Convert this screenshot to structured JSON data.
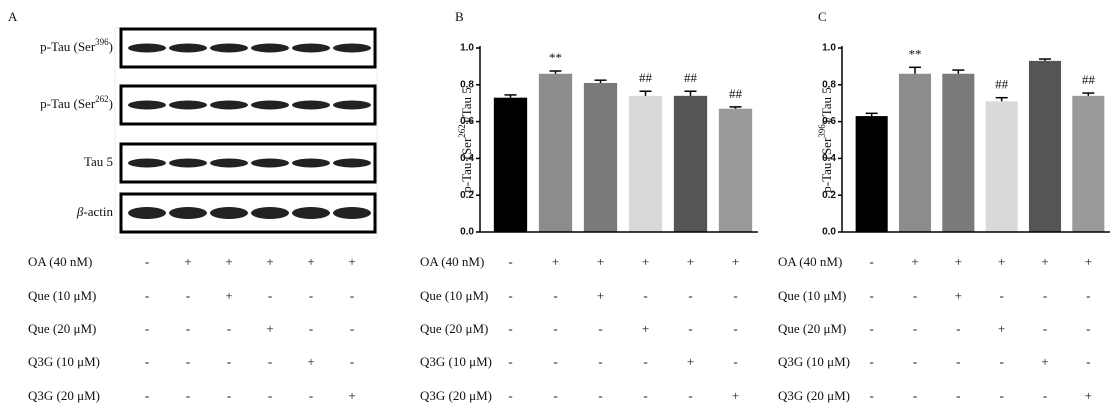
{
  "panels": {
    "a": "A"
  },
  "blot": {
    "rows": [
      {
        "prefix": "p-Tau (Ser",
        "sup": "396",
        "suffix": ")"
      },
      {
        "prefix": "p-Tau (Ser",
        "sup": "262",
        "suffix": ")"
      },
      {
        "prefix": "Tau 5"
      },
      {
        "prefix": "β",
        "suffix": "-actin"
      }
    ]
  },
  "treatments": [
    {
      "label": "OA (40 nM)",
      "signs": [
        "-",
        "+",
        "+",
        "+",
        "+",
        "+"
      ]
    },
    {
      "label": "Que (10 μM)",
      "signs": [
        "-",
        "-",
        "+",
        "-",
        "-",
        "-"
      ]
    },
    {
      "label": "Que (20 μM)",
      "signs": [
        "-",
        "-",
        "-",
        "+",
        "-",
        "-"
      ]
    },
    {
      "label": "Q3G (10 μM)",
      "signs": [
        "-",
        "-",
        "-",
        "-",
        "+",
        "-"
      ]
    },
    {
      "label": "Q3G (20 μM)",
      "signs": [
        "-",
        "-",
        "-",
        "-",
        "-",
        "+"
      ]
    }
  ],
  "chart_data": [
    {
      "type": "bar",
      "panel": "B",
      "ylabel": {
        "prefix": "p-Tau (Ser",
        "sup": "262",
        "suffix": ")/Tau 5"
      },
      "values": [
        0.73,
        0.86,
        0.81,
        0.74,
        0.74,
        0.67
      ],
      "errors": [
        0.015,
        0.015,
        0.015,
        0.025,
        0.025,
        0.01
      ],
      "annotations": [
        null,
        "**",
        null,
        "##",
        "##",
        "##"
      ],
      "colors": [
        "#000000",
        "#8c8c8c",
        "#7a7a7a",
        "#d9d9d9",
        "#555555",
        "#9a9a9a"
      ],
      "ylim": [
        0,
        1.0
      ],
      "yticks": [
        {
          "value": 0,
          "label": "0.0"
        },
        {
          "value": 0.2,
          "label": "0.2"
        },
        {
          "value": 0.4,
          "label": "0.4"
        },
        {
          "value": 0.6,
          "label": "0.6"
        },
        {
          "value": 0.8,
          "label": "0.8"
        },
        {
          "value": 1.0,
          "label": "1.0"
        }
      ]
    },
    {
      "type": "bar",
      "panel": "C",
      "ylabel": {
        "prefix": "p-Tau (Ser",
        "sup": "396",
        "suffix": ")/Tau 5"
      },
      "values": [
        0.63,
        0.86,
        0.86,
        0.71,
        0.93,
        0.74
      ],
      "errors": [
        0.015,
        0.035,
        0.02,
        0.02,
        0.01,
        0.015
      ],
      "annotations": [
        null,
        "**",
        null,
        "##",
        null,
        "##"
      ],
      "colors": [
        "#000000",
        "#8c8c8c",
        "#7a7a7a",
        "#d9d9d9",
        "#555555",
        "#9a9a9a"
      ],
      "ylim": [
        0,
        1.0
      ],
      "yticks": [
        {
          "value": 0,
          "label": "0.0"
        },
        {
          "value": 0.2,
          "label": "0.2"
        },
        {
          "value": 0.4,
          "label": "0.4"
        },
        {
          "value": 0.6,
          "label": "0.6"
        },
        {
          "value": 0.8,
          "label": "0.8"
        },
        {
          "value": 1.0,
          "label": "1.0"
        }
      ]
    }
  ]
}
